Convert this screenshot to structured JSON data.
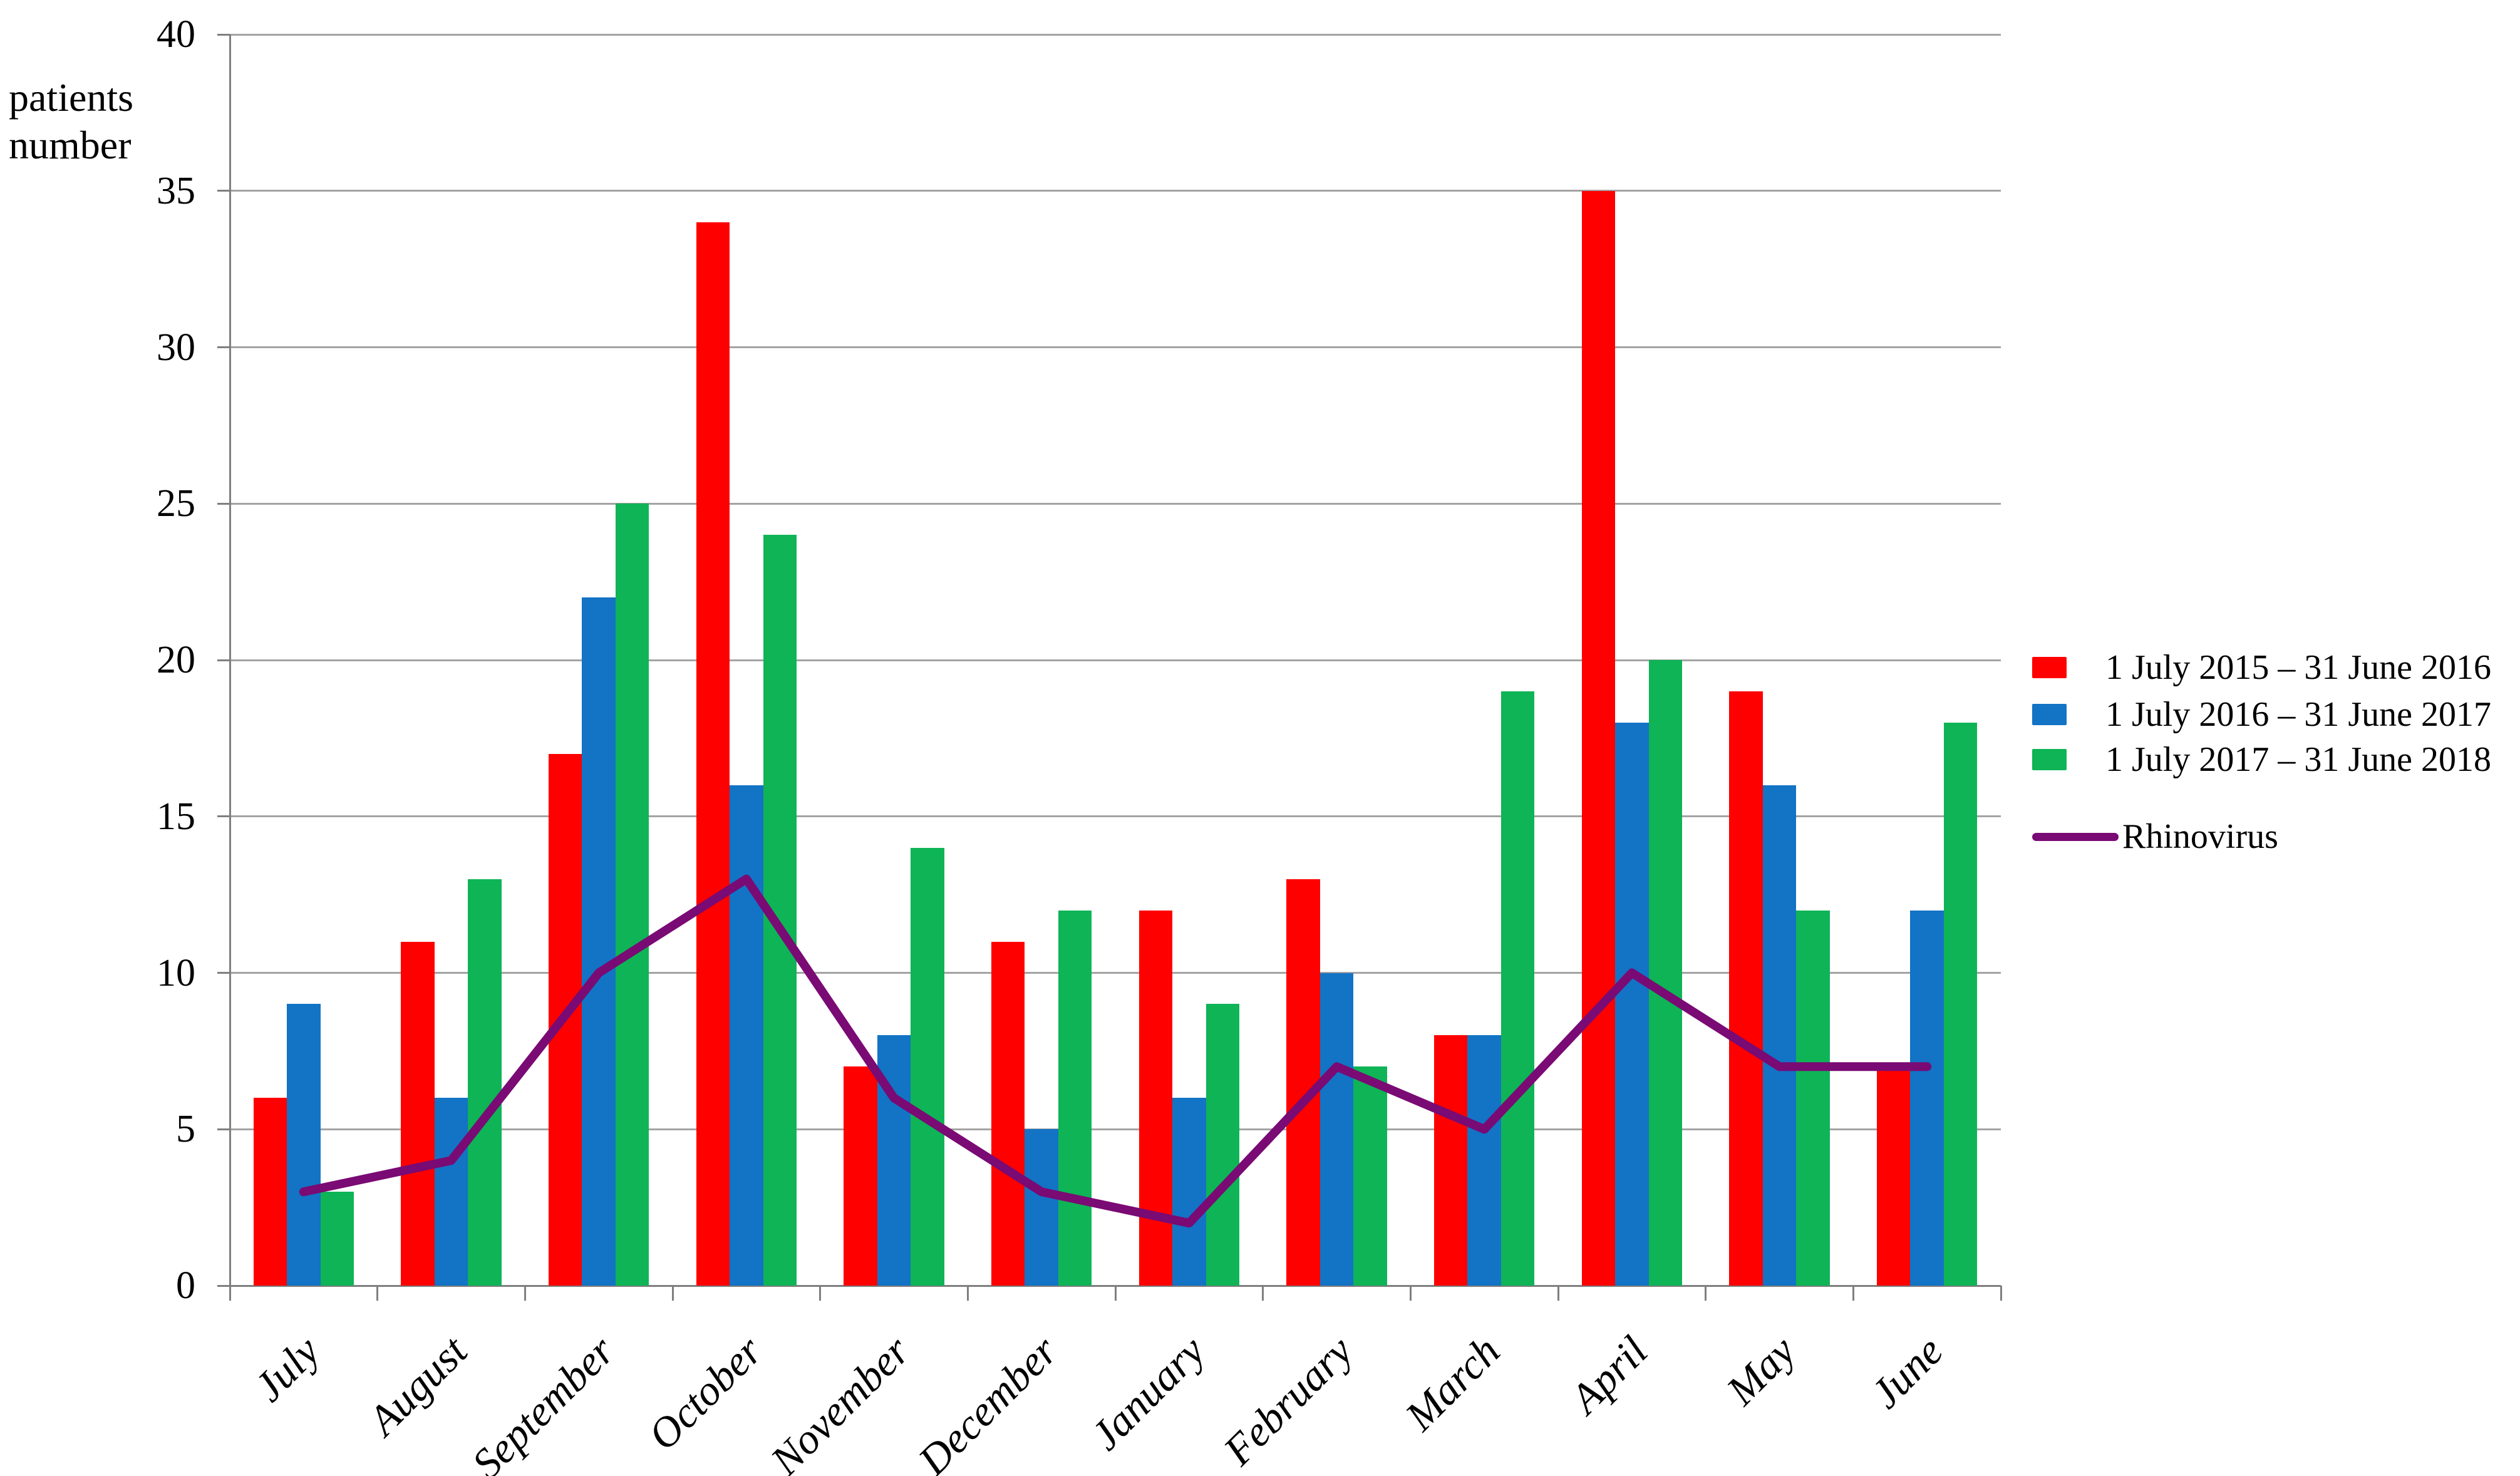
{
  "title": {
    "ylabel_line1": "patients",
    "ylabel_line2": "number"
  },
  "legend": {
    "items": [
      {
        "label": "1 July 2015 – 31 June 2016",
        "color": "#fe0000",
        "type": "bar"
      },
      {
        "label": "1 July 2016 – 31 June 2017",
        "color": "#1373c5",
        "type": "bar"
      },
      {
        "label": "1 July 2017 – 31 June 2018",
        "color": "#0eb456",
        "type": "bar"
      },
      {
        "label": "Rhinovirus",
        "color": "#7a0a74",
        "type": "line"
      }
    ]
  },
  "chart_data": {
    "type": "bar+line",
    "title": "",
    "ylabel": "patients number",
    "xlabel": "",
    "ylim": [
      0,
      40
    ],
    "ytick_step": 5,
    "yticks": [
      40,
      35,
      30,
      25,
      20,
      15,
      10,
      5,
      0
    ],
    "grid": true,
    "legend_position": "right",
    "categories": [
      "July",
      "August",
      "September",
      "October",
      "November",
      "December",
      "January",
      "February",
      "March",
      "April",
      "May",
      "June"
    ],
    "series": [
      {
        "name": "1 July 2015 – 31 June 2016",
        "color": "#fe0000",
        "values": [
          6,
          11,
          17,
          34,
          7,
          11,
          12,
          13,
          8,
          35,
          19,
          7
        ]
      },
      {
        "name": "1 July 2016 – 31 June 2017",
        "color": "#1373c5",
        "values": [
          9,
          6,
          22,
          16,
          8,
          5,
          6,
          10,
          8,
          18,
          16,
          12
        ]
      },
      {
        "name": "1 July 2017 – 31 June 2018",
        "color": "#0eb456",
        "values": [
          3,
          13,
          25,
          24,
          14,
          12,
          9,
          7,
          19,
          20,
          12,
          18
        ]
      }
    ],
    "line_series": {
      "name": "Rhinovirus",
      "color": "#7a0a74",
      "values": [
        3,
        4,
        10,
        13,
        6,
        3,
        2,
        7,
        5,
        10,
        7,
        7
      ]
    },
    "axis_color": "#7f7f7f",
    "gridline_color": "#a3a3a3"
  }
}
